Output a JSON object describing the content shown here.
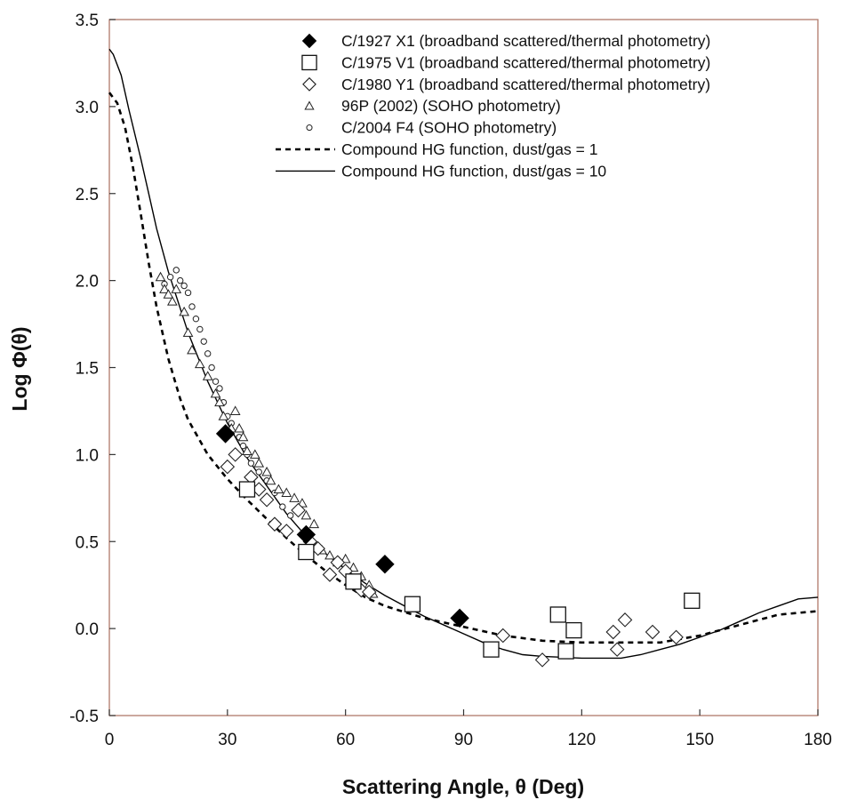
{
  "chart_data": {
    "type": "scatter",
    "xlabel": "Scattering Angle, θ (Deg)",
    "ylabel": "Log Φ(θ)",
    "xlim": [
      0,
      180
    ],
    "ylim": [
      -0.5,
      3.5
    ],
    "xticks": [
      "0",
      "30",
      "60",
      "90",
      "120",
      "150",
      "180"
    ],
    "yticks": [
      "-0.5",
      "0.0",
      "0.5",
      "1.0",
      "1.5",
      "2.0",
      "2.5",
      "3.0",
      "3.5"
    ],
    "grid": false,
    "legend_position": "top-right",
    "series": [
      {
        "name": "C/1927 X1 (broadband scattered/thermal photometry)",
        "marker": "filled-diamond",
        "points": [
          [
            29.5,
            1.12
          ],
          [
            50,
            0.54
          ],
          [
            70,
            0.37
          ],
          [
            89,
            0.06
          ]
        ]
      },
      {
        "name": "C/1975 V1 (broadband scattered/thermal photometry)",
        "marker": "open-square",
        "points": [
          [
            35,
            0.8
          ],
          [
            50,
            0.44
          ],
          [
            62,
            0.27
          ],
          [
            77,
            0.14
          ],
          [
            97,
            -0.12
          ],
          [
            114,
            0.08
          ],
          [
            116,
            -0.13
          ],
          [
            118,
            -0.01
          ],
          [
            148,
            0.16
          ]
        ]
      },
      {
        "name": "C/1980 Y1 (broadband scattered/thermal photometry)",
        "marker": "open-diamond",
        "points": [
          [
            30,
            0.93
          ],
          [
            32,
            1.0
          ],
          [
            36,
            0.87
          ],
          [
            38,
            0.8
          ],
          [
            40,
            0.74
          ],
          [
            42,
            0.6
          ],
          [
            45,
            0.56
          ],
          [
            48,
            0.68
          ],
          [
            51,
            0.5
          ],
          [
            53,
            0.46
          ],
          [
            56,
            0.31
          ],
          [
            58,
            0.38
          ],
          [
            60,
            0.33
          ],
          [
            64,
            0.22
          ],
          [
            66,
            0.21
          ],
          [
            100,
            -0.04
          ],
          [
            110,
            -0.18
          ],
          [
            128,
            -0.02
          ],
          [
            129,
            -0.12
          ],
          [
            131,
            0.05
          ],
          [
            138,
            -0.02
          ],
          [
            144,
            -0.05
          ]
        ]
      },
      {
        "name": "96P (2002) (SOHO photometry)",
        "marker": "open-triangle",
        "points": [
          [
            13,
            2.02
          ],
          [
            14,
            1.95
          ],
          [
            15,
            1.92
          ],
          [
            16,
            1.88
          ],
          [
            17,
            1.95
          ],
          [
            19,
            1.82
          ],
          [
            20,
            1.7
          ],
          [
            21,
            1.6
          ],
          [
            23,
            1.52
          ],
          [
            25,
            1.45
          ],
          [
            27,
            1.35
          ],
          [
            28,
            1.3
          ],
          [
            29,
            1.22
          ],
          [
            31,
            1.15
          ],
          [
            32,
            1.25
          ],
          [
            33,
            1.15
          ],
          [
            34,
            1.1
          ],
          [
            35,
            1.02
          ],
          [
            37,
            1.0
          ],
          [
            38,
            0.95
          ],
          [
            40,
            0.9
          ],
          [
            41,
            0.85
          ],
          [
            43,
            0.8
          ],
          [
            45,
            0.78
          ],
          [
            47,
            0.75
          ],
          [
            49,
            0.72
          ],
          [
            50,
            0.65
          ],
          [
            52,
            0.6
          ],
          [
            54,
            0.45
          ],
          [
            56,
            0.42
          ],
          [
            58,
            0.38
          ],
          [
            60,
            0.4
          ],
          [
            62,
            0.35
          ],
          [
            64,
            0.3
          ],
          [
            66,
            0.25
          ],
          [
            67,
            0.2
          ]
        ]
      },
      {
        "name": "C/2004 F4 (SOHO photometry)",
        "marker": "open-circle",
        "points": [
          [
            14,
            1.98
          ],
          [
            15.5,
            2.02
          ],
          [
            17,
            2.06
          ],
          [
            18,
            2.0
          ],
          [
            19,
            1.97
          ],
          [
            20,
            1.93
          ],
          [
            21,
            1.85
          ],
          [
            22,
            1.78
          ],
          [
            23,
            1.72
          ],
          [
            24,
            1.65
          ],
          [
            25,
            1.58
          ],
          [
            26,
            1.5
          ],
          [
            27,
            1.42
          ],
          [
            28,
            1.38
          ],
          [
            29,
            1.3
          ],
          [
            30,
            1.22
          ],
          [
            31,
            1.18
          ],
          [
            33,
            1.1
          ],
          [
            34,
            1.05
          ],
          [
            35,
            1.0
          ],
          [
            36,
            0.95
          ],
          [
            38,
            0.9
          ],
          [
            40,
            0.85
          ],
          [
            42,
            0.78
          ],
          [
            44,
            0.7
          ],
          [
            46,
            0.65
          ]
        ]
      },
      {
        "name": "Compound HG function, dust/gas = 1",
        "style": "dashed-line",
        "points": [
          [
            0,
            3.08
          ],
          [
            2,
            3.02
          ],
          [
            4,
            2.88
          ],
          [
            6,
            2.65
          ],
          [
            8,
            2.38
          ],
          [
            10,
            2.1
          ],
          [
            12,
            1.85
          ],
          [
            15,
            1.55
          ],
          [
            18,
            1.32
          ],
          [
            20,
            1.2
          ],
          [
            25,
            1.0
          ],
          [
            30,
            0.86
          ],
          [
            35,
            0.74
          ],
          [
            40,
            0.63
          ],
          [
            45,
            0.52
          ],
          [
            50,
            0.42
          ],
          [
            55,
            0.33
          ],
          [
            60,
            0.25
          ],
          [
            65,
            0.18
          ],
          [
            70,
            0.13
          ],
          [
            80,
            0.06
          ],
          [
            90,
            0.01
          ],
          [
            100,
            -0.04
          ],
          [
            110,
            -0.07
          ],
          [
            120,
            -0.08
          ],
          [
            130,
            -0.08
          ],
          [
            140,
            -0.08
          ],
          [
            150,
            -0.04
          ],
          [
            160,
            0.02
          ],
          [
            170,
            0.08
          ],
          [
            180,
            0.1
          ]
        ]
      },
      {
        "name": "Compound HG function, dust/gas = 10",
        "style": "solid-line",
        "points": [
          [
            0,
            3.33
          ],
          [
            1,
            3.3
          ],
          [
            3,
            3.18
          ],
          [
            5,
            2.98
          ],
          [
            8,
            2.7
          ],
          [
            10,
            2.5
          ],
          [
            12,
            2.3
          ],
          [
            15,
            2.05
          ],
          [
            20,
            1.7
          ],
          [
            25,
            1.42
          ],
          [
            30,
            1.18
          ],
          [
            35,
            0.98
          ],
          [
            40,
            0.82
          ],
          [
            45,
            0.66
          ],
          [
            50,
            0.53
          ],
          [
            55,
            0.43
          ],
          [
            60,
            0.34
          ],
          [
            65,
            0.26
          ],
          [
            70,
            0.19
          ],
          [
            75,
            0.13
          ],
          [
            80,
            0.07
          ],
          [
            85,
            0.02
          ],
          [
            90,
            -0.03
          ],
          [
            95,
            -0.08
          ],
          [
            100,
            -0.12
          ],
          [
            105,
            -0.15
          ],
          [
            110,
            -0.16
          ],
          [
            120,
            -0.17
          ],
          [
            130,
            -0.17
          ],
          [
            135,
            -0.15
          ],
          [
            140,
            -0.12
          ],
          [
            145,
            -0.09
          ],
          [
            150,
            -0.05
          ],
          [
            155,
            -0.01
          ],
          [
            160,
            0.04
          ],
          [
            165,
            0.09
          ],
          [
            170,
            0.13
          ],
          [
            175,
            0.17
          ],
          [
            180,
            0.18
          ]
        ]
      }
    ]
  }
}
